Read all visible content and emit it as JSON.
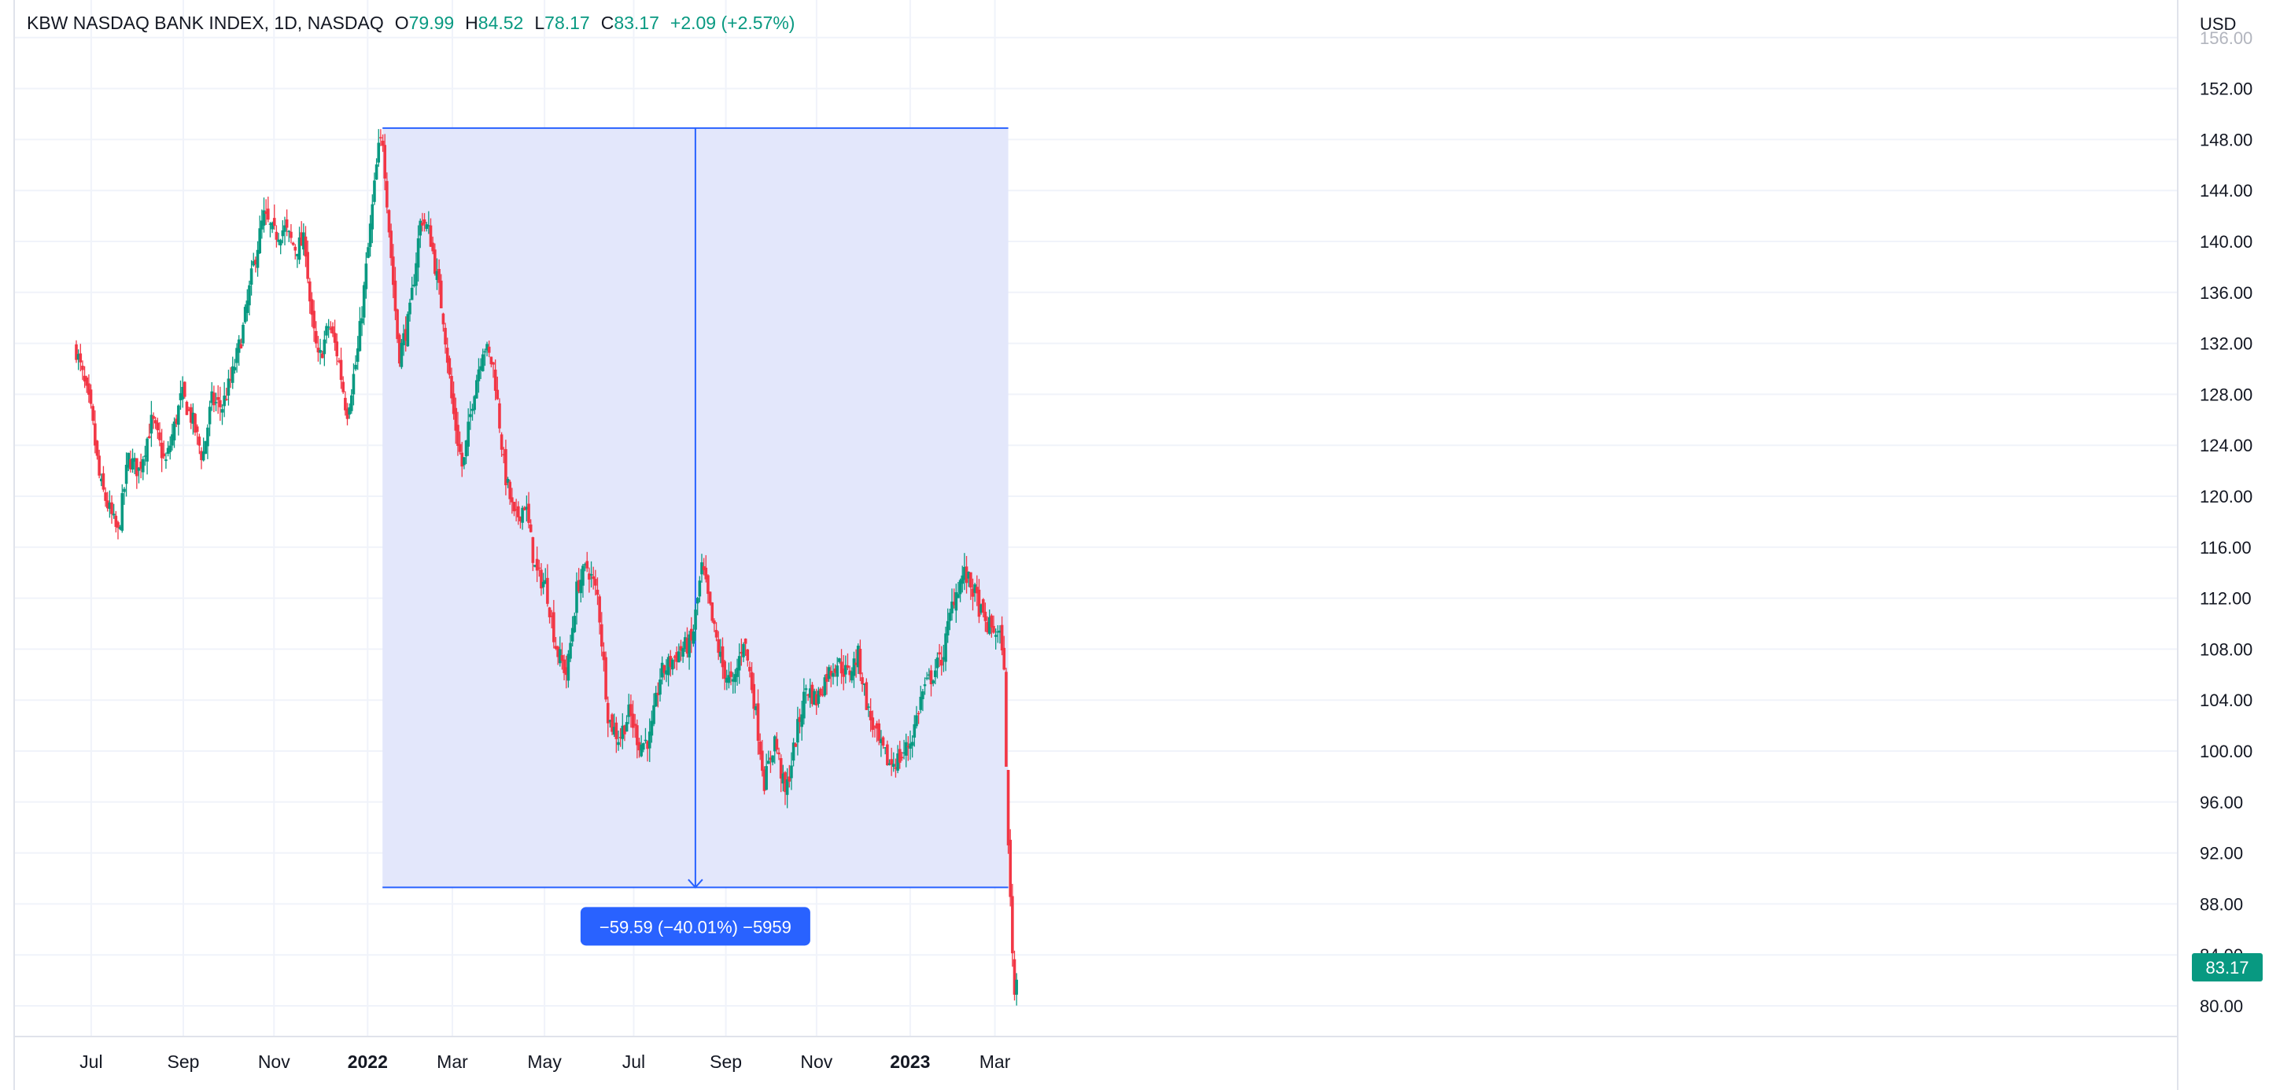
{
  "legend": {
    "symbol": "KBW NASDAQ BANK INDEX, 1D, NASDAQ",
    "open_label": "O",
    "open": "79.99",
    "high_label": "H",
    "high": "84.52",
    "low_label": "L",
    "low": "78.17",
    "close_label": "C",
    "close": "83.17",
    "change": "+2.09 (+2.57%)"
  },
  "currency": "USD",
  "last_price_label": "83.17",
  "measure_label": "−59.59 (−40.01%) −5959",
  "colors": {
    "up": "#089981",
    "down": "#F23645",
    "measure_fill": "#E3E7FB",
    "measure_line": "#2962FF",
    "measure_badge": "#2962FF",
    "grid": "#F0F3FA",
    "axis_text": "#131722"
  },
  "chart_data": {
    "type": "candlestick",
    "title": "KBW NASDAQ BANK INDEX, 1D, NASDAQ",
    "xlabel": "",
    "ylabel": "",
    "x_ticks": [
      {
        "label": "Jul",
        "x": "2021-07-01",
        "bold": false
      },
      {
        "label": "Sep",
        "x": "2021-09-01",
        "bold": false
      },
      {
        "label": "Nov",
        "x": "2021-11-01",
        "bold": false
      },
      {
        "label": "2022",
        "x": "2022-01-03",
        "bold": true
      },
      {
        "label": "Mar",
        "x": "2022-03-01",
        "bold": false
      },
      {
        "label": "May",
        "x": "2022-05-02",
        "bold": false
      },
      {
        "label": "Jul",
        "x": "2022-07-01",
        "bold": false
      },
      {
        "label": "Sep",
        "x": "2022-09-01",
        "bold": false
      },
      {
        "label": "Nov",
        "x": "2022-11-01",
        "bold": false
      },
      {
        "label": "2023",
        "x": "2023-01-03",
        "bold": true
      },
      {
        "label": "Mar",
        "x": "2023-03-01",
        "bold": false
      }
    ],
    "y_ticks": [
      "80.00",
      "84.00",
      "88.00",
      "92.00",
      "96.00",
      "100.00",
      "104.00",
      "108.00",
      "112.00",
      "116.00",
      "120.00",
      "124.00",
      "128.00",
      "132.00",
      "136.00",
      "140.00",
      "144.00",
      "148.00",
      "152.00",
      "156.00"
    ],
    "ylim": [
      78,
      158
    ],
    "grid": true,
    "measure": {
      "from_date": "2022-01-13",
      "to_date": "2023-03-10",
      "from_price": 148.9,
      "to_price": 89.3
    },
    "series": [
      {
        "values": [
          [
            "2021-06-21",
            131.5
          ],
          [
            "2021-07-01",
            126.5
          ],
          [
            "2021-07-07",
            121.0
          ],
          [
            "2021-07-19",
            117.0
          ],
          [
            "2021-07-26",
            123.0
          ],
          [
            "2021-08-02",
            122.0
          ],
          [
            "2021-08-11",
            126.0
          ],
          [
            "2021-08-20",
            122.5
          ],
          [
            "2021-08-31",
            128.0
          ],
          [
            "2021-09-07",
            126.0
          ],
          [
            "2021-09-14",
            123.0
          ],
          [
            "2021-09-20",
            127.5
          ],
          [
            "2021-09-27",
            127.0
          ],
          [
            "2021-10-04",
            129.5
          ],
          [
            "2021-10-11",
            133.0
          ],
          [
            "2021-10-18",
            138.0
          ],
          [
            "2021-10-25",
            142.0
          ],
          [
            "2021-11-01",
            140.5
          ],
          [
            "2021-11-08",
            141.0
          ],
          [
            "2021-11-15",
            139.5
          ],
          [
            "2021-11-22",
            140.0
          ],
          [
            "2021-11-26",
            134.0
          ],
          [
            "2021-12-01",
            130.5
          ],
          [
            "2021-12-08",
            133.5
          ],
          [
            "2021-12-14",
            131.0
          ],
          [
            "2021-12-20",
            126.5
          ],
          [
            "2021-12-27",
            131.0
          ],
          [
            "2022-01-03",
            139.0
          ],
          [
            "2022-01-10",
            147.0
          ],
          [
            "2022-01-13",
            148.3
          ],
          [
            "2022-01-18",
            140.0
          ],
          [
            "2022-01-24",
            131.0
          ],
          [
            "2022-01-31",
            134.0
          ],
          [
            "2022-02-08",
            142.0
          ],
          [
            "2022-02-14",
            140.5
          ],
          [
            "2022-02-23",
            134.0
          ],
          [
            "2022-03-01",
            127.0
          ],
          [
            "2022-03-08",
            122.0
          ],
          [
            "2022-03-15",
            128.0
          ],
          [
            "2022-03-22",
            132.0
          ],
          [
            "2022-03-29",
            130.0
          ],
          [
            "2022-04-05",
            122.0
          ],
          [
            "2022-04-12",
            118.0
          ],
          [
            "2022-04-19",
            119.5
          ],
          [
            "2022-04-26",
            114.0
          ],
          [
            "2022-05-03",
            113.0
          ],
          [
            "2022-05-10",
            108.0
          ],
          [
            "2022-05-17",
            106.0
          ],
          [
            "2022-05-24",
            113.0
          ],
          [
            "2022-05-31",
            114.5
          ],
          [
            "2022-06-07",
            112.0
          ],
          [
            "2022-06-14",
            102.5
          ],
          [
            "2022-06-21",
            101.0
          ],
          [
            "2022-06-28",
            103.0
          ],
          [
            "2022-07-05",
            100.5
          ],
          [
            "2022-07-12",
            101.0
          ],
          [
            "2022-07-19",
            106.0
          ],
          [
            "2022-07-26",
            107.0
          ],
          [
            "2022-08-02",
            108.0
          ],
          [
            "2022-08-09",
            108.5
          ],
          [
            "2022-08-16",
            114.5
          ],
          [
            "2022-08-23",
            110.0
          ],
          [
            "2022-08-30",
            106.5
          ],
          [
            "2022-09-06",
            105.0
          ],
          [
            "2022-09-13",
            109.0
          ],
          [
            "2022-09-20",
            104.0
          ],
          [
            "2022-09-27",
            97.5
          ],
          [
            "2022-10-04",
            101.0
          ],
          [
            "2022-10-11",
            96.5
          ],
          [
            "2022-10-18",
            101.0
          ],
          [
            "2022-10-25",
            105.0
          ],
          [
            "2022-11-01",
            104.0
          ],
          [
            "2022-11-08",
            106.0
          ],
          [
            "2022-11-15",
            107.0
          ],
          [
            "2022-11-22",
            106.0
          ],
          [
            "2022-11-29",
            107.5
          ],
          [
            "2022-12-06",
            103.0
          ],
          [
            "2022-12-13",
            100.5
          ],
          [
            "2022-12-20",
            99.0
          ],
          [
            "2022-12-28",
            99.5
          ],
          [
            "2023-01-04",
            101.0
          ],
          [
            "2023-01-11",
            104.5
          ],
          [
            "2023-01-18",
            106.0
          ],
          [
            "2023-01-25",
            107.5
          ],
          [
            "2023-02-01",
            112.0
          ],
          [
            "2023-02-08",
            114.0
          ],
          [
            "2023-02-15",
            112.5
          ],
          [
            "2023-02-22",
            110.0
          ],
          [
            "2023-03-01",
            109.5
          ],
          [
            "2023-03-06",
            108.5
          ],
          [
            "2023-03-08",
            104.0
          ],
          [
            "2023-03-09",
            96.0
          ],
          [
            "2023-03-10",
            92.0
          ],
          [
            "2023-03-13",
            84.0
          ],
          [
            "2023-03-14",
            81.0
          ],
          [
            "2023-03-15",
            80.5
          ],
          [
            "2023-03-16",
            83.17
          ]
        ]
      }
    ]
  }
}
